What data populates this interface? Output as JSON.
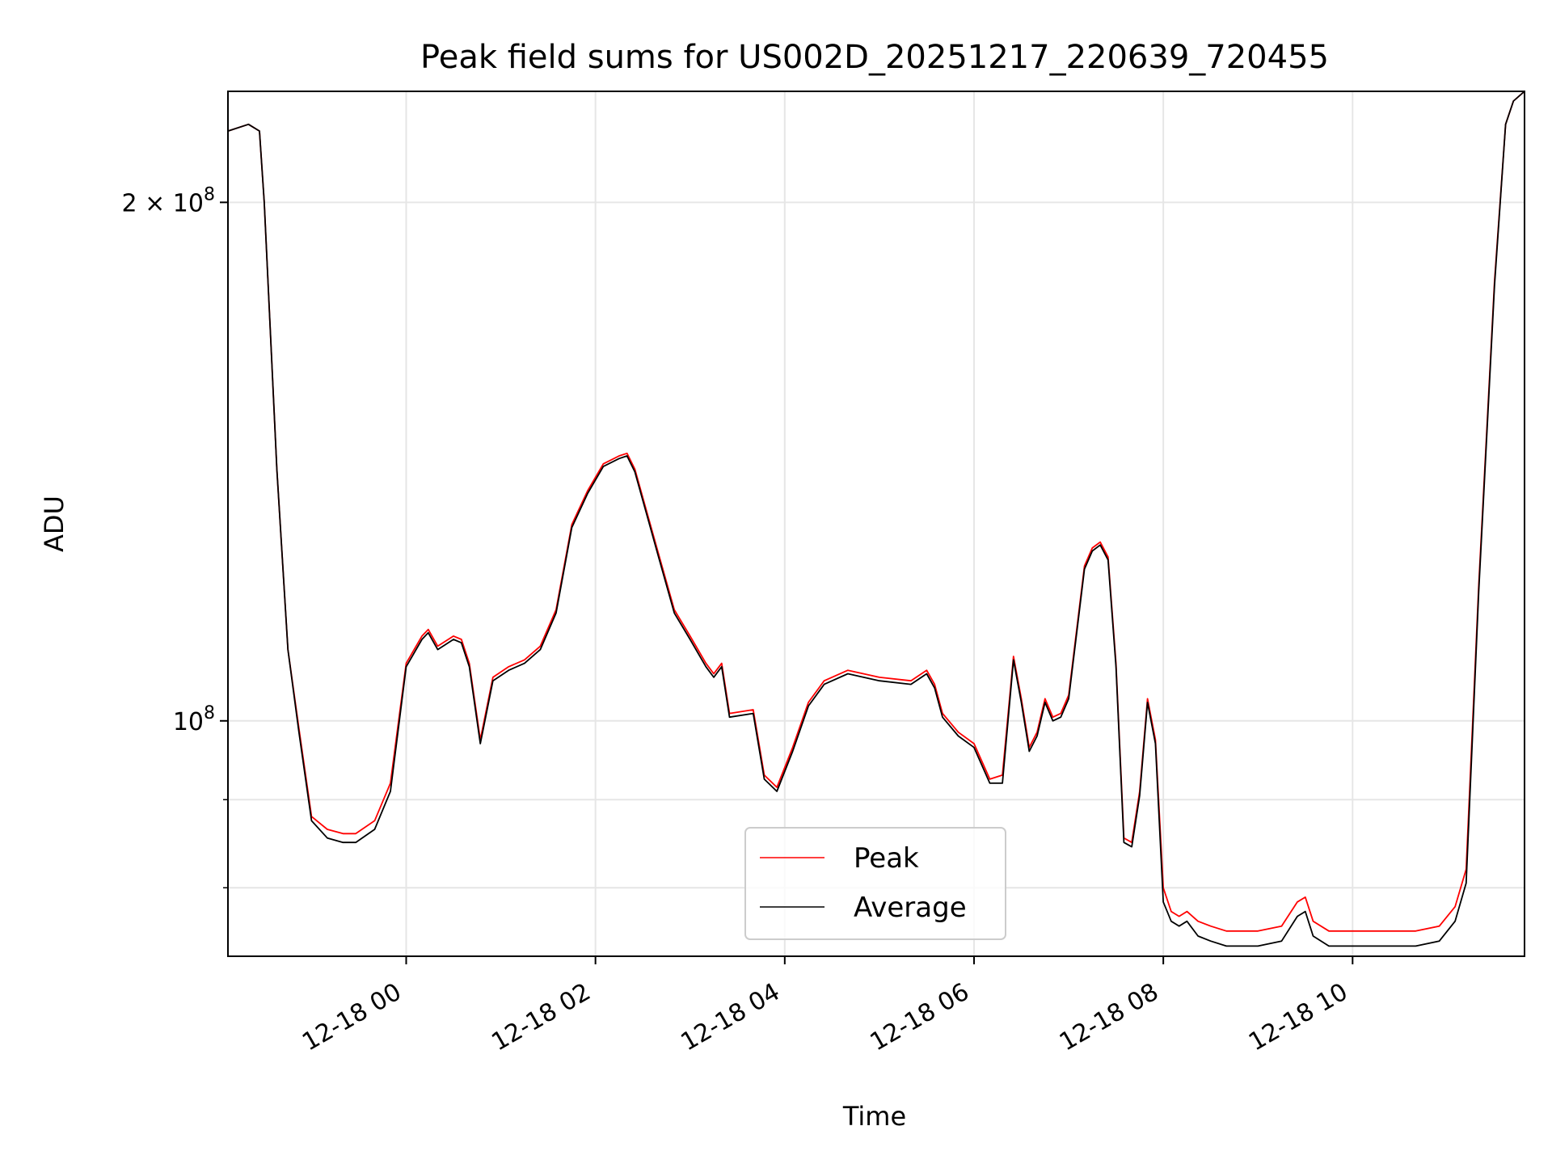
{
  "chart_data": {
    "type": "line",
    "title": "Peak field sums for US002D_20251217_220639_720455",
    "xlabel": "Time",
    "ylabel": "ADU",
    "yscale": "log",
    "xlim": [
      "2025-12-17 22:07",
      "2025-12-18 11:49"
    ],
    "ylim": [
      73000000,
      232000000
    ],
    "grid": true,
    "legend_position": "lower-center",
    "x_ticks": [
      "2025-12-18 00:00",
      "2025-12-18 02:00",
      "2025-12-18 04:00",
      "2025-12-18 06:00",
      "2025-12-18 08:00",
      "2025-12-18 10:00"
    ],
    "x_tick_labels": [
      "12-18 00",
      "12-18 02",
      "12-18 04",
      "12-18 06",
      "12-18 08",
      "12-18 10"
    ],
    "y_tick_labels": [
      {
        "value": 200000000,
        "mantissa": "2",
        "times": "×",
        "base": "10",
        "exp": "8"
      },
      {
        "value": 100000000,
        "mantissa": "",
        "times": "",
        "base": "10",
        "exp": "8"
      }
    ],
    "y_minor_ticks": [
      80000000,
      90000000
    ],
    "series": [
      {
        "name": "Peak",
        "color": "#ff0000",
        "x": [
          "2025-12-17 22:07",
          "2025-12-17 22:20",
          "2025-12-17 22:27",
          "2025-12-17 22:30",
          "2025-12-17 22:38",
          "2025-12-17 22:45",
          "2025-12-17 22:52",
          "2025-12-17 23:00",
          "2025-12-17 23:10",
          "2025-12-17 23:20",
          "2025-12-17 23:28",
          "2025-12-17 23:40",
          "2025-12-17 23:50",
          "2025-12-18 00:00",
          "2025-12-18 00:10",
          "2025-12-18 00:14",
          "2025-12-18 00:20",
          "2025-12-18 00:30",
          "2025-12-18 00:35",
          "2025-12-18 00:40",
          "2025-12-18 00:47",
          "2025-12-18 00:55",
          "2025-12-18 01:05",
          "2025-12-18 01:15",
          "2025-12-18 01:25",
          "2025-12-18 01:35",
          "2025-12-18 01:45",
          "2025-12-18 01:55",
          "2025-12-18 02:05",
          "2025-12-18 02:15",
          "2025-12-18 02:20",
          "2025-12-18 02:25",
          "2025-12-18 02:40",
          "2025-12-18 02:50",
          "2025-12-18 03:00",
          "2025-12-18 03:10",
          "2025-12-18 03:15",
          "2025-12-18 03:20",
          "2025-12-18 03:25",
          "2025-12-18 03:40",
          "2025-12-18 03:47",
          "2025-12-18 03:55",
          "2025-12-18 04:05",
          "2025-12-18 04:15",
          "2025-12-18 04:25",
          "2025-12-18 04:40",
          "2025-12-18 05:00",
          "2025-12-18 05:20",
          "2025-12-18 05:30",
          "2025-12-18 05:35",
          "2025-12-18 05:40",
          "2025-12-18 05:50",
          "2025-12-18 06:00",
          "2025-12-18 06:10",
          "2025-12-18 06:18",
          "2025-12-18 06:25",
          "2025-12-18 06:30",
          "2025-12-18 06:35",
          "2025-12-18 06:40",
          "2025-12-18 06:45",
          "2025-12-18 06:50",
          "2025-12-18 06:55",
          "2025-12-18 07:00",
          "2025-12-18 07:10",
          "2025-12-18 07:15",
          "2025-12-18 07:20",
          "2025-12-18 07:25",
          "2025-12-18 07:30",
          "2025-12-18 07:35",
          "2025-12-18 07:40",
          "2025-12-18 07:45",
          "2025-12-18 07:50",
          "2025-12-18 07:55",
          "2025-12-18 08:00",
          "2025-12-18 08:05",
          "2025-12-18 08:10",
          "2025-12-18 08:15",
          "2025-12-18 08:22",
          "2025-12-18 08:30",
          "2025-12-18 08:40",
          "2025-12-18 09:00",
          "2025-12-18 09:15",
          "2025-12-18 09:25",
          "2025-12-18 09:30",
          "2025-12-18 09:35",
          "2025-12-18 09:45",
          "2025-12-18 10:00",
          "2025-12-18 10:20",
          "2025-12-18 10:40",
          "2025-12-18 10:55",
          "2025-12-18 11:05",
          "2025-12-18 11:12",
          "2025-12-18 11:20",
          "2025-12-18 11:30",
          "2025-12-18 11:37",
          "2025-12-18 11:42",
          "2025-12-18 11:49"
        ],
        "values": [
          220000000,
          222000000,
          220000000,
          200000000,
          140000000,
          110000000,
          99000000,
          88000000,
          86500000,
          86000000,
          86000000,
          87500000,
          92000000,
          108000000,
          112000000,
          113000000,
          110500000,
          112000000,
          111500000,
          108000000,
          97500000,
          106000000,
          107500000,
          108500000,
          110500000,
          116000000,
          130000000,
          136000000,
          141000000,
          142500000,
          143000000,
          140000000,
          125000000,
          116000000,
          112000000,
          108000000,
          106500000,
          108000000,
          101000000,
          101500000,
          93000000,
          91500000,
          96500000,
          102500000,
          105500000,
          107000000,
          106000000,
          105500000,
          107000000,
          105000000,
          101000000,
          98500000,
          97000000,
          92500000,
          93000000,
          109000000,
          103000000,
          96500000,
          98500000,
          103000000,
          100500000,
          101000000,
          103500000,
          123000000,
          126000000,
          127000000,
          124500000,
          108000000,
          85500000,
          85000000,
          91000000,
          103000000,
          97500000,
          80000000,
          77500000,
          77000000,
          77500000,
          76500000,
          76000000,
          75500000,
          75500000,
          76000000,
          78500000,
          79000000,
          76500000,
          75500000,
          75500000,
          75500000,
          75500000,
          76000000,
          78000000,
          82000000,
          120000000,
          180000000,
          222000000,
          229000000,
          232000000
        ]
      },
      {
        "name": "Average",
        "color": "#000000",
        "x": [
          "2025-12-17 22:07",
          "2025-12-17 22:20",
          "2025-12-17 22:27",
          "2025-12-17 22:30",
          "2025-12-17 22:38",
          "2025-12-17 22:45",
          "2025-12-17 22:52",
          "2025-12-17 23:00",
          "2025-12-17 23:10",
          "2025-12-17 23:20",
          "2025-12-17 23:28",
          "2025-12-17 23:40",
          "2025-12-17 23:50",
          "2025-12-18 00:00",
          "2025-12-18 00:10",
          "2025-12-18 00:14",
          "2025-12-18 00:20",
          "2025-12-18 00:30",
          "2025-12-18 00:35",
          "2025-12-18 00:40",
          "2025-12-18 00:47",
          "2025-12-18 00:55",
          "2025-12-18 01:05",
          "2025-12-18 01:15",
          "2025-12-18 01:25",
          "2025-12-18 01:35",
          "2025-12-18 01:45",
          "2025-12-18 01:55",
          "2025-12-18 02:05",
          "2025-12-18 02:15",
          "2025-12-18 02:20",
          "2025-12-18 02:25",
          "2025-12-18 02:40",
          "2025-12-18 02:50",
          "2025-12-18 03:00",
          "2025-12-18 03:10",
          "2025-12-18 03:15",
          "2025-12-18 03:20",
          "2025-12-18 03:25",
          "2025-12-18 03:40",
          "2025-12-18 03:47",
          "2025-12-18 03:55",
          "2025-12-18 04:05",
          "2025-12-18 04:15",
          "2025-12-18 04:25",
          "2025-12-18 04:40",
          "2025-12-18 05:00",
          "2025-12-18 05:20",
          "2025-12-18 05:30",
          "2025-12-18 05:35",
          "2025-12-18 05:40",
          "2025-12-18 05:50",
          "2025-12-18 06:00",
          "2025-12-18 06:10",
          "2025-12-18 06:18",
          "2025-12-18 06:25",
          "2025-12-18 06:30",
          "2025-12-18 06:35",
          "2025-12-18 06:40",
          "2025-12-18 06:45",
          "2025-12-18 06:50",
          "2025-12-18 06:55",
          "2025-12-18 07:00",
          "2025-12-18 07:10",
          "2025-12-18 07:15",
          "2025-12-18 07:20",
          "2025-12-18 07:25",
          "2025-12-18 07:30",
          "2025-12-18 07:35",
          "2025-12-18 07:40",
          "2025-12-18 07:45",
          "2025-12-18 07:50",
          "2025-12-18 07:55",
          "2025-12-18 08:00",
          "2025-12-18 08:05",
          "2025-12-18 08:10",
          "2025-12-18 08:15",
          "2025-12-18 08:22",
          "2025-12-18 08:30",
          "2025-12-18 08:40",
          "2025-12-18 09:00",
          "2025-12-18 09:15",
          "2025-12-18 09:25",
          "2025-12-18 09:30",
          "2025-12-18 09:35",
          "2025-12-18 09:45",
          "2025-12-18 10:00",
          "2025-12-18 10:20",
          "2025-12-18 10:40",
          "2025-12-18 10:55",
          "2025-12-18 11:05",
          "2025-12-18 11:12",
          "2025-12-18 11:20",
          "2025-12-18 11:30",
          "2025-12-18 11:37",
          "2025-12-18 11:42",
          "2025-12-18 11:49"
        ],
        "values": [
          220000000,
          222000000,
          220000000,
          200000000,
          140000000,
          110000000,
          98500000,
          87500000,
          85500000,
          85000000,
          85000000,
          86500000,
          91000000,
          107500000,
          111500000,
          112500000,
          110000000,
          111500000,
          111000000,
          107500000,
          97000000,
          105500000,
          107000000,
          108000000,
          110000000,
          115500000,
          129500000,
          135500000,
          140500000,
          142000000,
          142500000,
          139500000,
          124500000,
          115500000,
          111500000,
          107500000,
          106000000,
          107500000,
          100500000,
          101000000,
          92500000,
          91000000,
          96000000,
          102000000,
          105000000,
          106500000,
          105500000,
          105000000,
          106500000,
          104500000,
          100500000,
          98000000,
          96500000,
          92000000,
          92000000,
          108500000,
          102500000,
          96000000,
          98000000,
          102500000,
          100000000,
          100500000,
          103000000,
          122500000,
          125500000,
          126500000,
          124000000,
          107500000,
          85000000,
          84500000,
          90500000,
          102500000,
          97000000,
          78500000,
          76500000,
          76000000,
          76500000,
          75000000,
          74500000,
          74000000,
          74000000,
          74500000,
          77000000,
          77500000,
          75000000,
          74000000,
          74000000,
          74000000,
          74000000,
          74500000,
          76500000,
          80500000,
          119000000,
          179000000,
          222000000,
          229000000,
          232000000
        ]
      }
    ]
  }
}
